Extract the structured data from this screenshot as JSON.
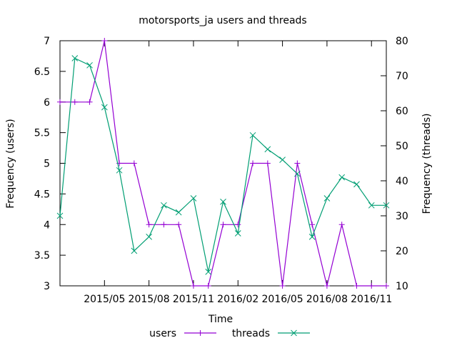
{
  "chart_data": {
    "type": "line",
    "title": "motorsports_ja users and threads",
    "xlabel": "Time",
    "ylabel_left": "Frequency (users)",
    "ylabel_right": "Frequency (threads)",
    "x": [
      "2015-02",
      "2015-03",
      "2015-04",
      "2015-05",
      "2015-06",
      "2015-07",
      "2015-08",
      "2015-09",
      "2015-10",
      "2015-11",
      "2015-12",
      "2016-01",
      "2016-02",
      "2016-03",
      "2016-04",
      "2016-05",
      "2016-06",
      "2016-07",
      "2016-08",
      "2016-09",
      "2016-10",
      "2016-11",
      "2016-12"
    ],
    "xlim": [
      "2015-02",
      "2016-12"
    ],
    "x_ticks": [
      "2015/05",
      "2015/08",
      "2015/11",
      "2016/02",
      "2016/05",
      "2016/08",
      "2016/11"
    ],
    "y_left": {
      "lim": [
        3,
        7
      ],
      "ticks": [
        "3",
        "3.5",
        "4",
        "4.5",
        "5",
        "5.5",
        "6",
        "6.5",
        "7"
      ]
    },
    "y_right": {
      "lim": [
        10,
        80
      ],
      "ticks": [
        "10",
        "20",
        "30",
        "40",
        "50",
        "60",
        "70",
        "80"
      ]
    },
    "series": [
      {
        "name": "users",
        "axis": "left",
        "color": "#9400d3",
        "marker": "plus",
        "values": [
          6,
          6,
          6,
          7,
          5,
          5,
          4,
          4,
          4,
          3,
          3,
          4,
          4,
          5,
          5,
          3,
          5,
          4,
          3,
          4,
          3,
          3,
          3
        ]
      },
      {
        "name": "threads",
        "axis": "right",
        "color": "#009e73",
        "marker": "cross",
        "values": [
          30,
          75,
          73,
          61,
          43,
          20,
          24,
          33,
          31,
          35,
          14,
          34,
          25,
          53,
          49,
          46,
          42,
          24,
          35,
          41,
          39,
          33,
          33
        ]
      }
    ],
    "legend": "bottom-center",
    "grid": false
  }
}
